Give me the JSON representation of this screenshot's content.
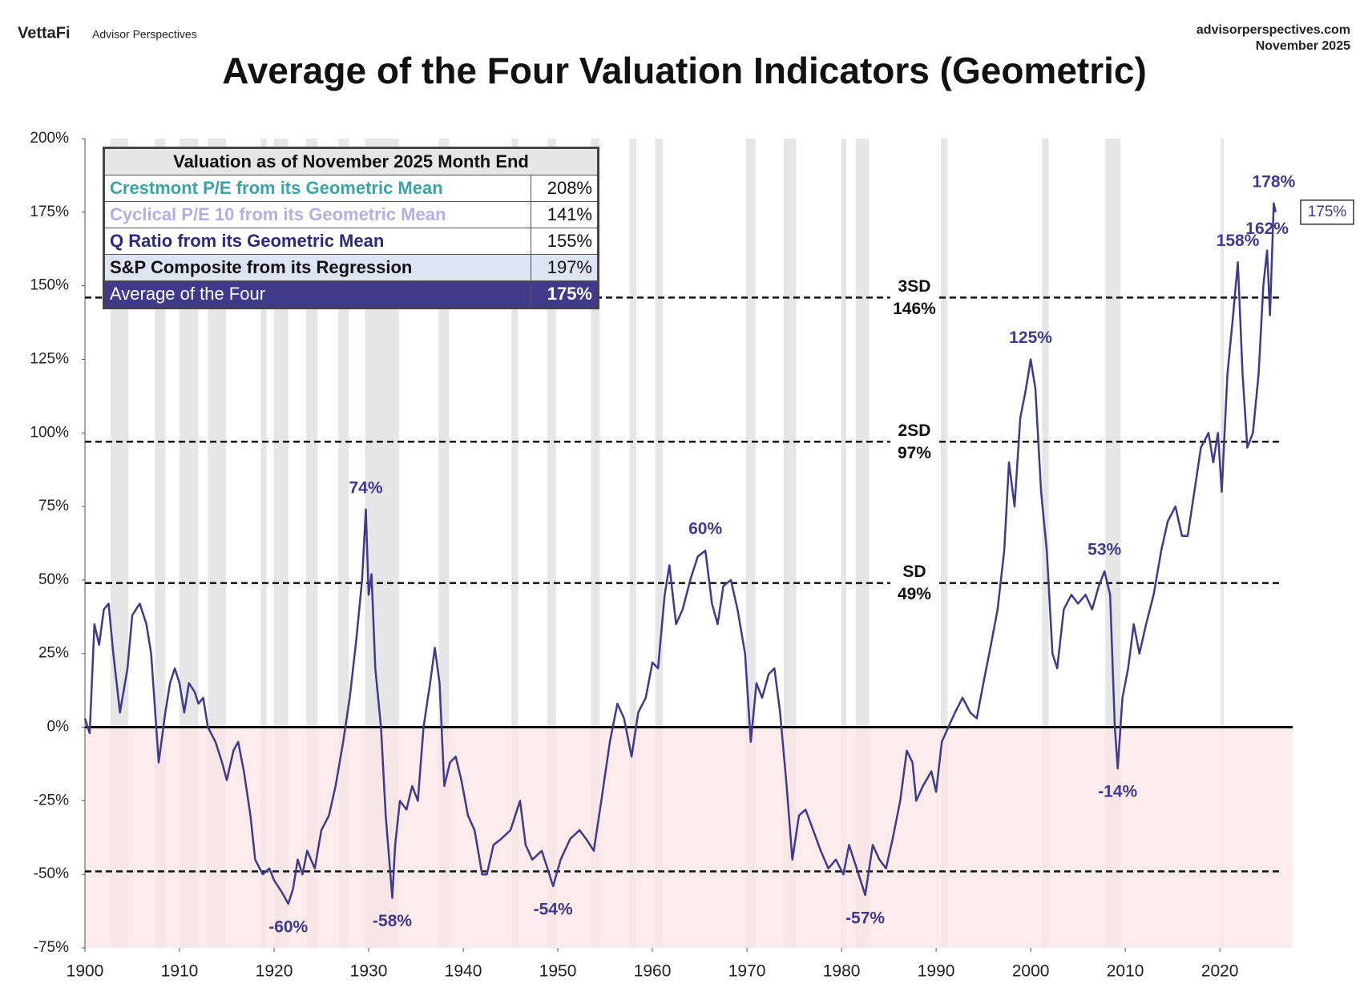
{
  "header": {
    "brand": "VettaFi",
    "publisher": "Advisor Perspectives",
    "website": "advisorperspectives.com",
    "date": "November 2025"
  },
  "chart_data": {
    "type": "line",
    "title": "Average of the Four Valuation Indicators (Geometric)",
    "table": {
      "title": "Valuation as of November 2025 Month End",
      "rows": [
        {
          "label": "Crestmont P/E from its Geometric Mean",
          "value": "208%"
        },
        {
          "label": "Cyclical P/E 10 from its Geometric Mean",
          "value": "141%"
        },
        {
          "label": "Q Ratio from its Geometric Mean",
          "value": "155%"
        },
        {
          "label": "S&P Composite from its Regression",
          "value": "197%"
        },
        {
          "label": "Average of the Four",
          "value": "175%"
        }
      ]
    },
    "xlim": [
      1900,
      2027.7
    ],
    "xticks": [
      1900,
      1910,
      1920,
      1930,
      1940,
      1950,
      1960,
      1970,
      1980,
      1990,
      2000,
      2010,
      2020
    ],
    "ylim": [
      -75,
      200
    ],
    "yticks": [
      {
        "value": 200,
        "label": "200%"
      },
      {
        "value": 175,
        "label": "175%"
      },
      {
        "value": 150,
        "label": "150%"
      },
      {
        "value": 125,
        "label": "125%"
      },
      {
        "value": 100,
        "label": "100%"
      },
      {
        "value": 75,
        "label": "75%"
      },
      {
        "value": 50,
        "label": "50%"
      },
      {
        "value": 25,
        "label": "25%"
      },
      {
        "value": 0,
        "label": "0%"
      },
      {
        "value": -25,
        "label": "-25%"
      },
      {
        "value": -50,
        "label": "-50%"
      },
      {
        "value": -75,
        "label": "-75%"
      }
    ],
    "shaded_periods": [
      [
        1902.7,
        1904.6
      ],
      [
        1907.4,
        1908.5
      ],
      [
        1910.0,
        1912.0
      ],
      [
        1913.0,
        1914.9
      ],
      [
        1918.6,
        1919.2
      ],
      [
        1920.0,
        1921.5
      ],
      [
        1923.4,
        1924.6
      ],
      [
        1926.8,
        1927.9
      ],
      [
        1929.6,
        1933.2
      ],
      [
        1937.4,
        1938.5
      ],
      [
        1945.1,
        1945.8
      ],
      [
        1948.9,
        1949.8
      ],
      [
        1953.5,
        1954.4
      ],
      [
        1957.6,
        1958.3
      ],
      [
        1960.3,
        1961.1
      ],
      [
        1969.9,
        1970.9
      ],
      [
        1973.9,
        1975.2
      ],
      [
        1980.0,
        1980.5
      ],
      [
        1981.5,
        1982.9
      ],
      [
        1990.5,
        1991.2
      ],
      [
        2001.2,
        2001.9
      ],
      [
        2007.9,
        2009.5
      ],
      [
        2020.1,
        2020.4
      ]
    ],
    "reference_lines": [
      {
        "label": "3SD",
        "value": 146,
        "value_label": "146%"
      },
      {
        "label": "2SD",
        "value": 97,
        "value_label": "97%"
      },
      {
        "label": "SD",
        "value": 49,
        "value_label": "49%"
      },
      {
        "value": -49
      }
    ],
    "series": [
      {
        "name": "Average of the Four",
        "color": "#3f3a8a",
        "x": [
          1900,
          1900.5,
          1901,
          1901.5,
          1902,
          1902.5,
          1903,
          1903.7,
          1904.5,
          1905,
          1905.8,
          1906.5,
          1907,
          1907.8,
          1908.5,
          1909,
          1909.5,
          1910,
          1910.5,
          1911,
          1911.6,
          1912,
          1912.5,
          1913,
          1913.8,
          1914.5,
          1915,
          1915.7,
          1916.2,
          1916.8,
          1917.5,
          1918,
          1918.8,
          1919.5,
          1920,
          1920.8,
          1921.5,
          1922,
          1922.5,
          1923,
          1923.5,
          1924.3,
          1925,
          1925.8,
          1926.5,
          1927.3,
          1928,
          1928.7,
          1929.3,
          1929.7,
          1930,
          1930.3,
          1930.7,
          1931.3,
          1931.8,
          1932.5,
          1932.8,
          1933.3,
          1934,
          1934.6,
          1935.2,
          1935.8,
          1936.5,
          1937,
          1937.5,
          1938,
          1938.6,
          1939.2,
          1939.8,
          1940.5,
          1941.2,
          1942,
          1942.5,
          1943.2,
          1944,
          1945,
          1946,
          1946.6,
          1947.3,
          1948.3,
          1949.5,
          1950.3,
          1951.3,
          1952.3,
          1953,
          1953.8,
          1954.6,
          1955.5,
          1956.3,
          1957,
          1957.8,
          1958.5,
          1959.3,
          1960,
          1960.6,
          1961.3,
          1961.8,
          1962.5,
          1963.2,
          1964,
          1964.8,
          1965.6,
          1966.3,
          1966.9,
          1967.5,
          1968.3,
          1969,
          1969.8,
          1970.4,
          1971,
          1971.6,
          1972.3,
          1972.9,
          1973.5,
          1974.2,
          1974.8,
          1975.5,
          1976.2,
          1977,
          1977.8,
          1978.6,
          1979.4,
          1980.2,
          1980.8,
          1981.5,
          1982.5,
          1983.3,
          1984,
          1984.7,
          1985.4,
          1986.2,
          1986.9,
          1987.5,
          1987.9,
          1988.6,
          1989.5,
          1990,
          1990.6,
          1991.3,
          1992,
          1992.8,
          1993.6,
          1994.3,
          1995,
          1995.8,
          1996.5,
          1997.2,
          1997.7,
          1998.3,
          1998.9,
          1999.5,
          2000,
          2000.5,
          2001.1,
          2001.7,
          2002.3,
          2002.8,
          2003.5,
          2004.3,
          2005,
          2005.8,
          2006.5,
          2007.2,
          2007.8,
          2008.4,
          2008.9,
          2009.2,
          2009.7,
          2010.3,
          2010.9,
          2011.5,
          2012.2,
          2013,
          2013.8,
          2014.5,
          2015.3,
          2016,
          2016.6,
          2017.3,
          2018,
          2018.8,
          2019.3,
          2019.8,
          2020.2,
          2020.8,
          2021.4,
          2021.9,
          2022.4,
          2022.9,
          2023.5,
          2024.1,
          2024.6,
          2025,
          2025.3,
          2025.7,
          2025.9
        ],
        "values": [
          3,
          -2,
          35,
          28,
          40,
          42,
          25,
          5,
          20,
          38,
          42,
          35,
          25,
          -12,
          5,
          15,
          20,
          15,
          5,
          15,
          12,
          8,
          10,
          0,
          -5,
          -12,
          -18,
          -8,
          -5,
          -15,
          -30,
          -45,
          -50,
          -48,
          -52,
          -56,
          -60,
          -55,
          -45,
          -50,
          -42,
          -48,
          -35,
          -30,
          -20,
          -5,
          10,
          30,
          50,
          74,
          45,
          52,
          20,
          0,
          -30,
          -58,
          -40,
          -25,
          -28,
          -20,
          -25,
          0,
          15,
          27,
          15,
          -20,
          -12,
          -10,
          -18,
          -30,
          -35,
          -50,
          -50,
          -40,
          -38,
          -35,
          -25,
          -40,
          -45,
          -42,
          -54,
          -45,
          -38,
          -35,
          -38,
          -42,
          -25,
          -5,
          8,
          3,
          -10,
          5,
          10,
          22,
          20,
          45,
          55,
          35,
          40,
          50,
          58,
          60,
          42,
          35,
          48,
          50,
          40,
          25,
          -5,
          15,
          10,
          18,
          20,
          5,
          -20,
          -45,
          -30,
          -28,
          -35,
          -42,
          -48,
          -45,
          -50,
          -40,
          -47,
          -57,
          -40,
          -45,
          -48,
          -38,
          -25,
          -8,
          -12,
          -25,
          -20,
          -15,
          -22,
          -5,
          0,
          5,
          10,
          5,
          3,
          15,
          28,
          40,
          60,
          90,
          75,
          105,
          115,
          125,
          115,
          80,
          60,
          25,
          20,
          40,
          45,
          42,
          45,
          40,
          48,
          53,
          45,
          0,
          -14,
          10,
          20,
          35,
          25,
          35,
          45,
          60,
          70,
          75,
          65,
          65,
          80,
          95,
          100,
          90,
          100,
          80,
          120,
          140,
          158,
          120,
          95,
          100,
          120,
          150,
          162,
          140,
          178,
          175
        ]
      }
    ],
    "annotations": [
      {
        "x": 1921.5,
        "y": -60,
        "label": "-60%"
      },
      {
        "x": 1929.7,
        "y": 74,
        "label": "74%"
      },
      {
        "x": 1932.5,
        "y": -58,
        "label": "-58%"
      },
      {
        "x": 1949.5,
        "y": -54,
        "label": "-54%"
      },
      {
        "x": 1965.6,
        "y": 60,
        "label": "60%"
      },
      {
        "x": 1982.5,
        "y": -57,
        "label": "-57%"
      },
      {
        "x": 2000,
        "y": 125,
        "label": "125%"
      },
      {
        "x": 2007.8,
        "y": 53,
        "label": "53%"
      },
      {
        "x": 2009.2,
        "y": -14,
        "label": "-14%"
      },
      {
        "x": 2021.9,
        "y": 158,
        "label": "158%"
      },
      {
        "x": 2025,
        "y": 162,
        "label": "162%"
      },
      {
        "x": 2025.7,
        "y": 178,
        "label": "178%"
      }
    ],
    "end_label": {
      "value": 175,
      "label": "175%"
    }
  }
}
